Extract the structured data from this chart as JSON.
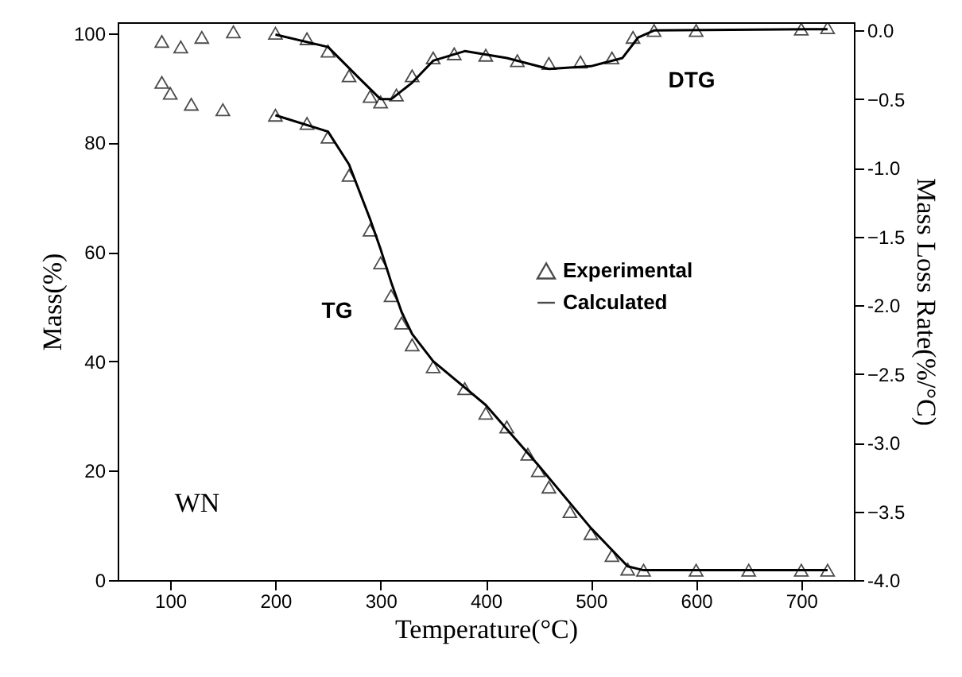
{
  "chart_data": {
    "type": "line",
    "xlabel": "Temperature(°C)",
    "ylabel": "Mass(%)",
    "y2label": "Mass Loss Rate(%/°C)",
    "xlim": [
      50,
      750
    ],
    "xticks": [
      100,
      200,
      300,
      400,
      500,
      600,
      700
    ],
    "ylim": [
      0,
      102
    ],
    "yticks": [
      0,
      20,
      40,
      60,
      80,
      100
    ],
    "y2lim": [
      -4,
      0.06
    ],
    "y2ticks": [
      {
        "value": -4,
        "label": "-4.0"
      },
      -3.5,
      {
        "value": -3,
        "label": "-3.0"
      },
      -2.5,
      {
        "value": -2,
        "label": "-2.0"
      },
      -1.5,
      {
        "value": -1,
        "label": "-1.0"
      },
      -0.5,
      {
        "value": 0,
        "label": "0.0"
      }
    ],
    "legend": "right",
    "grid": false,
    "series": [
      {
        "name": "Experimental",
        "type": "scatter",
        "marker": "triangle",
        "color": "#000000",
        "x": [
          92,
          100,
          120,
          150,
          200,
          230,
          250,
          270,
          290,
          300,
          310,
          320,
          330,
          350,
          380,
          400,
          420,
          440,
          450,
          460,
          480,
          500,
          520,
          535,
          550,
          600,
          650,
          700,
          725
        ],
        "values": [
          91,
          89,
          87,
          86,
          85,
          83.5,
          81,
          74,
          64,
          58,
          52,
          47,
          43,
          39,
          35,
          30.5,
          28,
          23,
          20,
          17,
          12.5,
          8.5,
          4.5,
          2,
          1.8,
          1.8,
          1.8,
          1.8,
          1.8
        ]
      },
      {
        "name": "Calculated",
        "line_style": "solid",
        "color": "#000000",
        "x": [
          200,
          250,
          270,
          290,
          300,
          310,
          320,
          330,
          350,
          400,
          450,
          500,
          535,
          550,
          725
        ],
        "values": [
          85,
          82,
          76,
          66,
          60.5,
          54.5,
          49,
          45,
          40,
          32,
          21,
          9.5,
          2.5,
          1.8,
          1.8
        ]
      },
      {
        "type": "scatter",
        "marker": "triangle",
        "axis": "y2",
        "color": "#000000",
        "x": [
          92,
          110,
          130,
          160,
          200,
          230,
          250,
          270,
          290,
          300,
          315,
          330,
          350,
          370,
          400,
          430,
          460,
          490,
          520,
          540,
          560,
          600,
          700,
          725
        ],
        "values": [
          -0.08,
          -0.12,
          -0.05,
          -0.01,
          -0.02,
          -0.06,
          -0.15,
          -0.33,
          -0.48,
          -0.52,
          -0.47,
          -0.33,
          -0.2,
          -0.17,
          -0.18,
          -0.22,
          -0.24,
          -0.23,
          -0.2,
          -0.05,
          0,
          0,
          0.01,
          0.02
        ]
      },
      {
        "line_style": "solid",
        "axis": "y2",
        "color": "#000000",
        "x": [
          200,
          250,
          280,
          300,
          310,
          330,
          350,
          380,
          420,
          460,
          500,
          530,
          545,
          560,
          725
        ],
        "values": [
          -0.03,
          -0.12,
          -0.35,
          -0.5,
          -0.5,
          -0.38,
          -0.22,
          -0.15,
          -0.2,
          -0.28,
          -0.26,
          -0.2,
          -0.05,
          0,
          0.01
        ]
      }
    ],
    "annotations": [
      "TG",
      "DTG",
      "WN"
    ]
  }
}
